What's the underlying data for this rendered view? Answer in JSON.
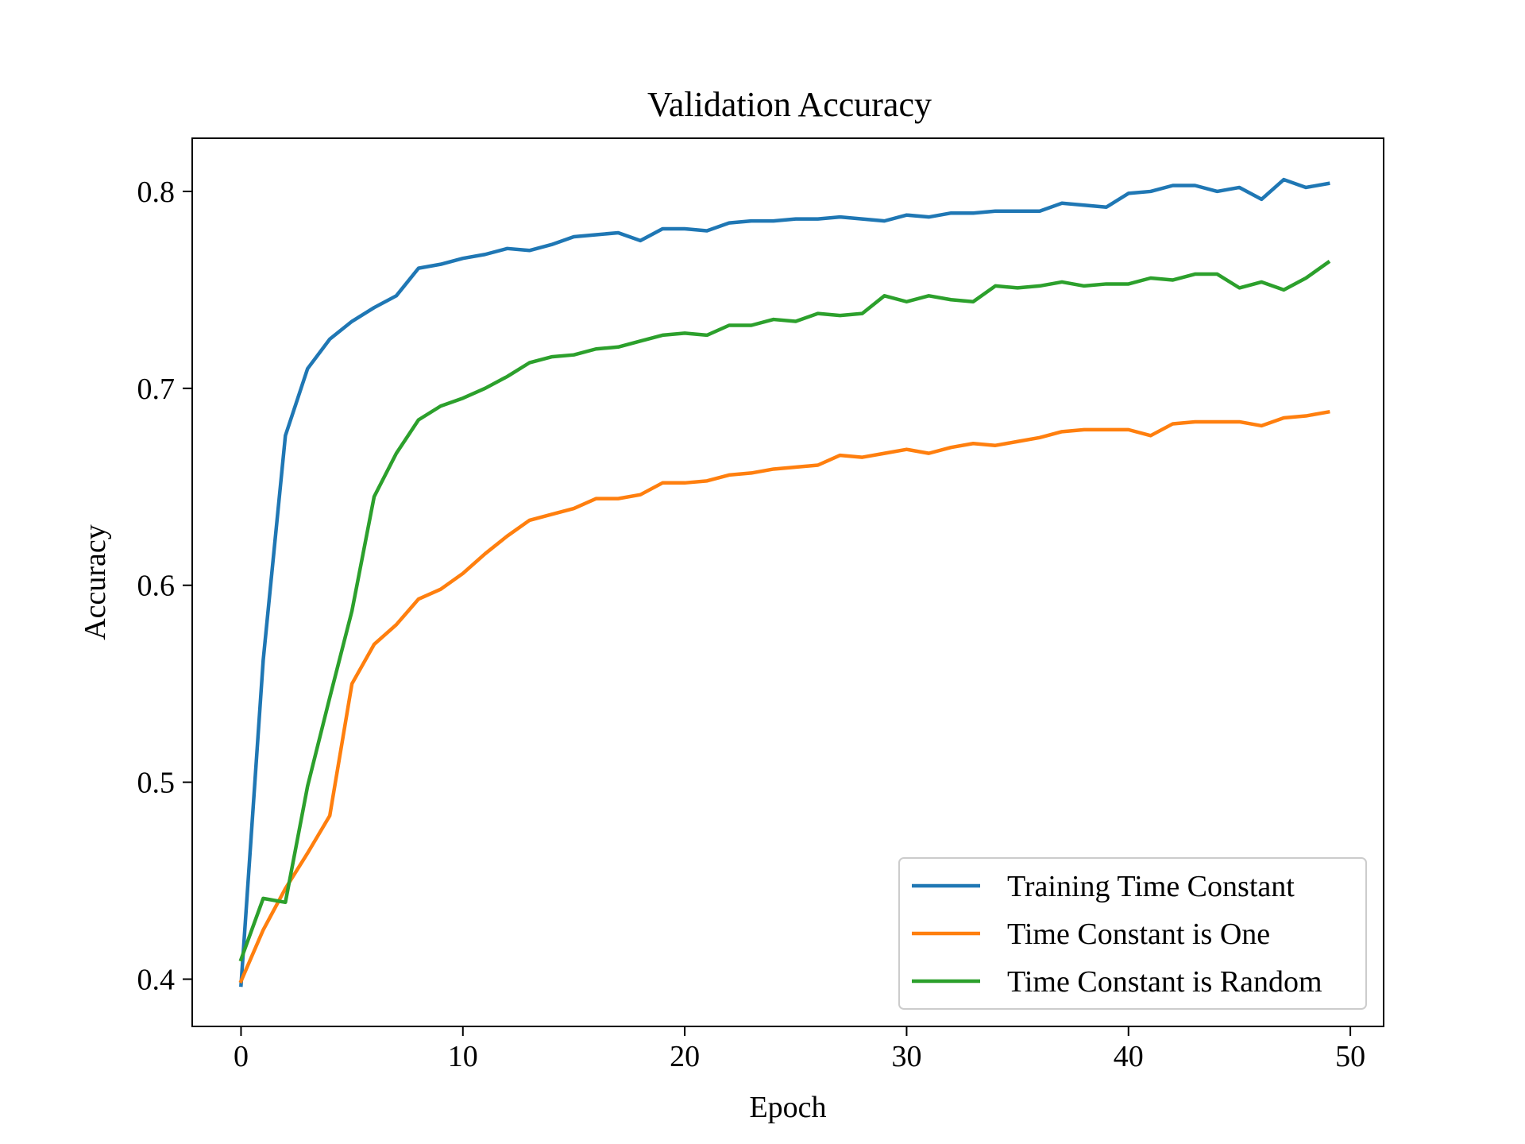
{
  "chart_data": {
    "type": "line",
    "title": "Validation Accuracy",
    "xlabel": "Epoch",
    "ylabel": "Accuracy",
    "xlim": [
      -2.2,
      51.5
    ],
    "ylim": [
      0.376,
      0.827
    ],
    "xticks": [
      0,
      10,
      20,
      30,
      40,
      50
    ],
    "yticks": [
      0.4,
      0.5,
      0.6,
      0.7,
      0.8
    ],
    "xtick_labels": [
      "0",
      "10",
      "20",
      "30",
      "40",
      "50"
    ],
    "ytick_labels": [
      "0.4",
      "0.5",
      "0.6",
      "0.7",
      "0.8"
    ],
    "grid": false,
    "legend_position": "lower-right",
    "x": [
      0,
      1,
      2,
      3,
      4,
      5,
      6,
      7,
      8,
      9,
      10,
      11,
      12,
      13,
      14,
      15,
      16,
      17,
      18,
      19,
      20,
      21,
      22,
      23,
      24,
      25,
      26,
      27,
      28,
      29,
      30,
      31,
      32,
      33,
      34,
      35,
      36,
      37,
      38,
      39,
      40,
      41,
      42,
      43,
      44,
      45,
      46,
      47,
      48,
      49
    ],
    "series": [
      {
        "name": "Training Time Constant",
        "color": "#1f77b4",
        "values": [
          0.397,
          0.562,
          0.676,
          0.71,
          0.725,
          0.734,
          0.741,
          0.747,
          0.761,
          0.763,
          0.766,
          0.768,
          0.771,
          0.77,
          0.773,
          0.777,
          0.778,
          0.779,
          0.775,
          0.781,
          0.781,
          0.78,
          0.784,
          0.785,
          0.785,
          0.786,
          0.786,
          0.787,
          0.786,
          0.785,
          0.788,
          0.787,
          0.789,
          0.789,
          0.79,
          0.79,
          0.79,
          0.794,
          0.793,
          0.792,
          0.799,
          0.8,
          0.803,
          0.803,
          0.8,
          0.802,
          0.796,
          0.806,
          0.802,
          0.804
        ]
      },
      {
        "name": "Time Constant is One",
        "color": "#ff7f0e",
        "values": [
          0.399,
          0.425,
          0.446,
          0.464,
          0.483,
          0.55,
          0.57,
          0.58,
          0.593,
          0.598,
          0.606,
          0.616,
          0.625,
          0.633,
          0.636,
          0.639,
          0.644,
          0.644,
          0.646,
          0.652,
          0.652,
          0.653,
          0.656,
          0.657,
          0.659,
          0.66,
          0.661,
          0.666,
          0.665,
          0.667,
          0.669,
          0.667,
          0.67,
          0.672,
          0.671,
          0.673,
          0.675,
          0.678,
          0.679,
          0.679,
          0.679,
          0.676,
          0.682,
          0.683,
          0.683,
          0.683,
          0.681,
          0.685,
          0.686,
          0.688
        ]
      },
      {
        "name": "Time Constant is Random",
        "color": "#2ca02c",
        "values": [
          0.41,
          0.441,
          0.439,
          0.498,
          0.543,
          0.587,
          0.645,
          0.667,
          0.684,
          0.691,
          0.695,
          0.7,
          0.706,
          0.713,
          0.716,
          0.717,
          0.72,
          0.721,
          0.724,
          0.727,
          0.728,
          0.727,
          0.732,
          0.732,
          0.735,
          0.734,
          0.738,
          0.737,
          0.738,
          0.747,
          0.744,
          0.747,
          0.745,
          0.744,
          0.752,
          0.751,
          0.752,
          0.754,
          0.752,
          0.753,
          0.753,
          0.756,
          0.755,
          0.758,
          0.758,
          0.751,
          0.754,
          0.75,
          0.756,
          0.764
        ]
      }
    ]
  }
}
